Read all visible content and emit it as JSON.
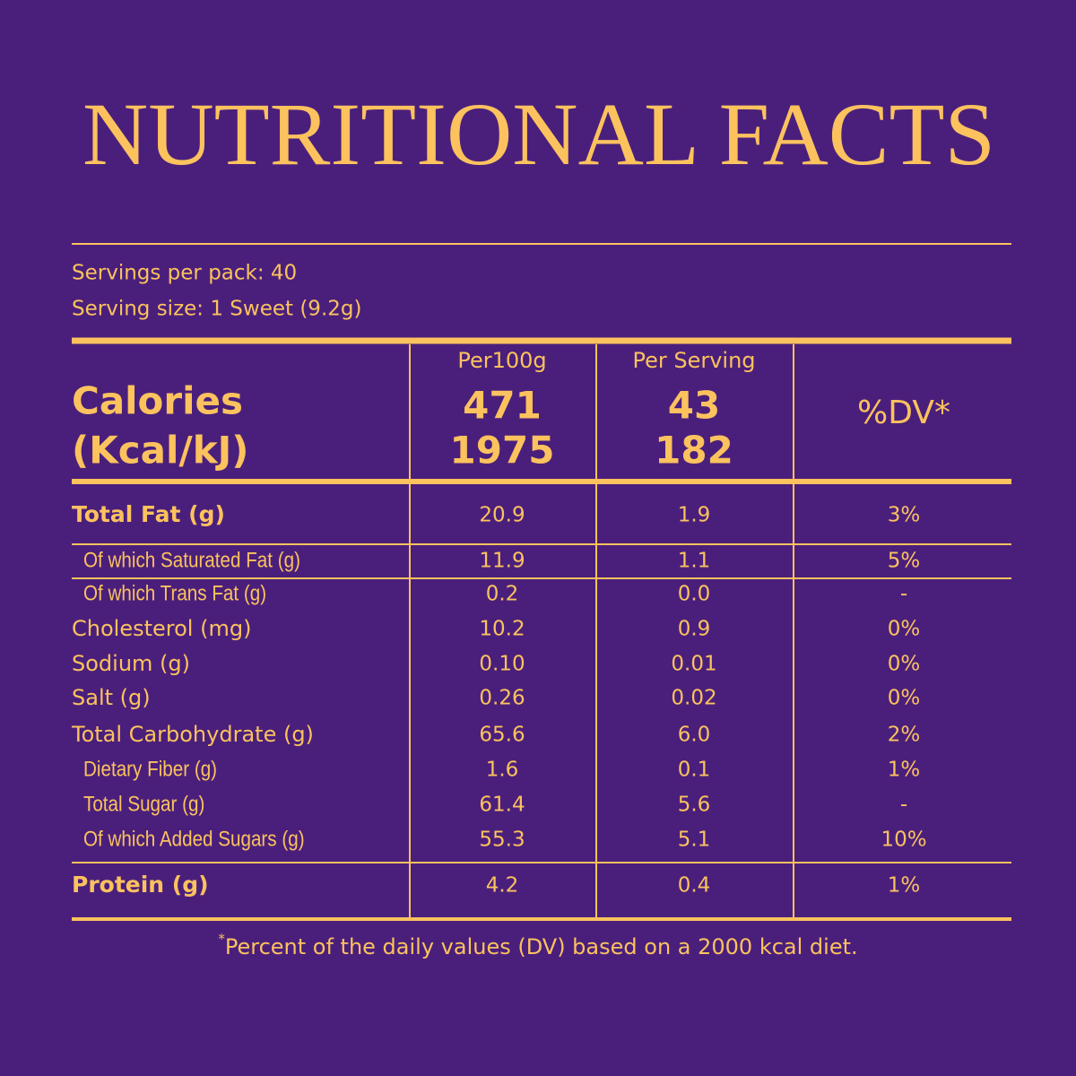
{
  "title": "NUTRITIONAL FACTS",
  "servings": [
    "Servings per pack: 40",
    "Serving size: 1 Sweet (9.2g)"
  ],
  "table": {
    "header": {
      "label": [
        "Calories",
        "(Kcal/kJ)"
      ],
      "columns": [
        {
          "name": "Per100g",
          "values": [
            "471",
            "1975"
          ]
        },
        {
          "name": "Per Serving",
          "values": [
            "43",
            "182"
          ]
        },
        {
          "name": "%DV*"
        }
      ]
    },
    "rows": [
      [
        "Total Fat (g)",
        "20.9",
        "1.9",
        "3%"
      ],
      [
        "Of which Saturated Fat (g)",
        "11.9",
        "1.1",
        "5%"
      ],
      [
        "Of which Trans Fat (g)",
        "0.2",
        "0.0",
        "-"
      ],
      [
        "Cholesterol (mg)",
        "10.2",
        "0.9",
        "0%"
      ],
      [
        "Sodium (g)",
        "0.10",
        "0.01",
        "0%"
      ],
      [
        "Salt (g)",
        "0.26",
        "0.02",
        "0%"
      ],
      [
        "Total Carbohydrate (g)",
        "65.6",
        "6.0",
        "2%"
      ],
      [
        "Dietary Fiber (g)",
        "1.6",
        "0.1",
        "1%"
      ],
      [
        "Total Sugar (g)",
        "61.4",
        "5.6",
        "-"
      ],
      [
        "Of which Added Sugars (g)",
        "55.3",
        "5.1",
        "10%"
      ],
      [
        "Protein (g)",
        "4.2",
        "0.4",
        "1%"
      ]
    ]
  },
  "footnote": {
    "marker": "*",
    "text": "Percent of the daily values (DV) based on a 2000 kcal diet."
  }
}
